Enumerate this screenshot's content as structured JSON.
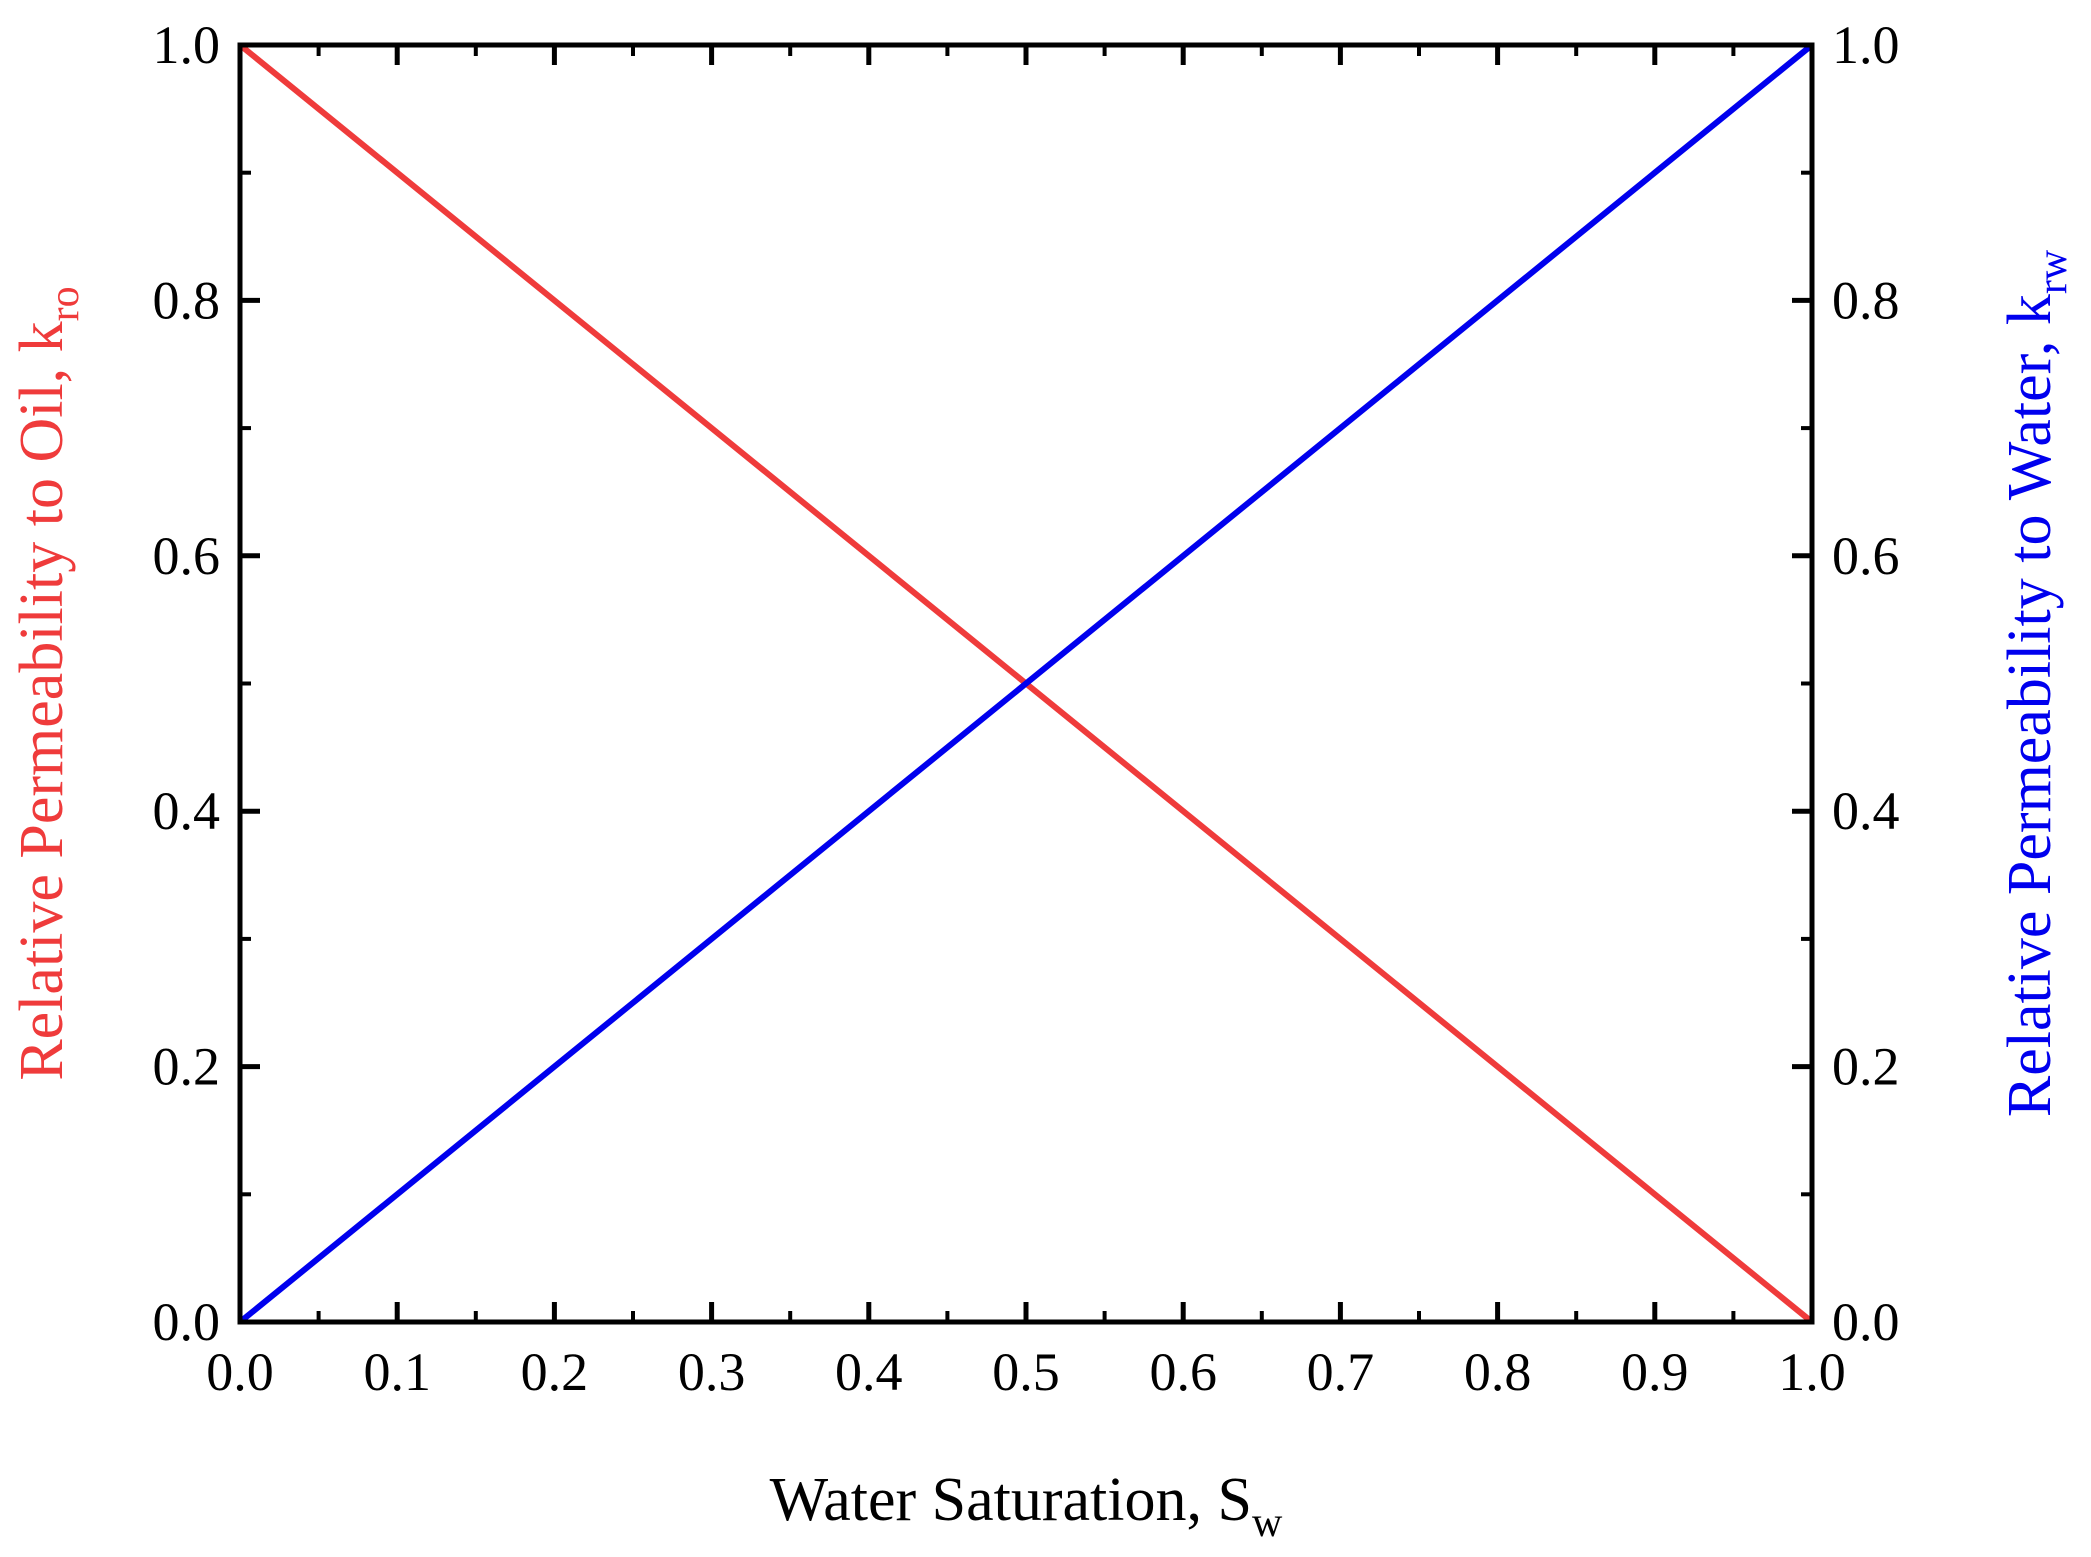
{
  "chart_data": {
    "type": "line",
    "title": "",
    "xlabel": "Water Saturation, S",
    "xlabel_sub": "w",
    "ylabel_left": "Relative Permeability to Oil, k",
    "ylabel_left_sub": "ro",
    "ylabel_right": "Relative Permeability to Water, k",
    "ylabel_right_sub": "rw",
    "xlim": [
      0.0,
      1.0
    ],
    "ylim": [
      0.0,
      1.0
    ],
    "y2lim": [
      0.0,
      1.0
    ],
    "grid": false,
    "x_ticks": [
      "0.0",
      "0.1",
      "0.2",
      "0.3",
      "0.4",
      "0.5",
      "0.6",
      "0.7",
      "0.8",
      "0.9",
      "1.0"
    ],
    "y_ticks": [
      "0.0",
      "0.2",
      "0.4",
      "0.6",
      "0.8",
      "1.0"
    ],
    "y2_ticks": [
      "0.0",
      "0.2",
      "0.4",
      "0.6",
      "0.8",
      "1.0"
    ],
    "series": [
      {
        "name": "k_ro",
        "axis": "left",
        "color": "#ef3b3b",
        "x": [
          0.0,
          1.0
        ],
        "y": [
          1.0,
          0.0
        ]
      },
      {
        "name": "k_rw",
        "axis": "right",
        "color": "#0000ee",
        "x": [
          0.0,
          1.0
        ],
        "y": [
          0.0,
          1.0
        ]
      }
    ],
    "colors": {
      "axis": "#000000",
      "left_label": "#ef3b3b",
      "right_label": "#0000ee"
    }
  }
}
